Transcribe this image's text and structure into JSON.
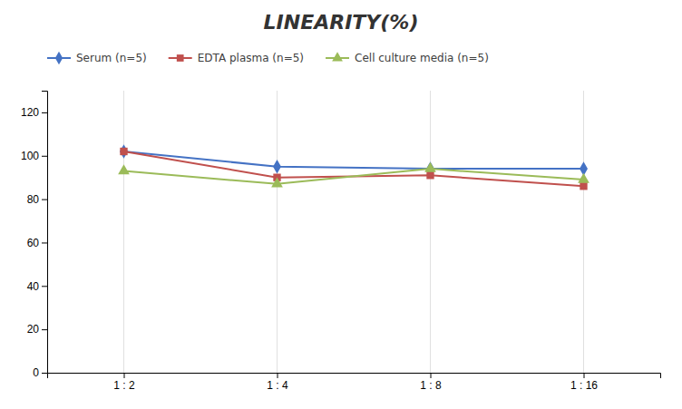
{
  "chart_data": {
    "type": "line",
    "title": "LINEARITY(%)",
    "categories": [
      "1 : 2",
      "1 : 4",
      "1 : 8",
      "1 : 16"
    ],
    "series": [
      {
        "name": "Serum (n=5)",
        "color": "#4472C4",
        "marker": "diamond",
        "values": [
          102,
          95,
          94,
          94
        ]
      },
      {
        "name": "EDTA plasma (n=5)",
        "color": "#C0504D",
        "marker": "square",
        "values": [
          102,
          90,
          91,
          86
        ]
      },
      {
        "name": "Cell culture media (n=5)",
        "color": "#9BBB59",
        "marker": "triangle",
        "values": [
          93,
          87,
          94,
          89
        ]
      }
    ],
    "ylim": [
      0,
      130
    ],
    "yticks": [
      0,
      20,
      40,
      60,
      80,
      100,
      120
    ],
    "grid": true,
    "legend": "top"
  }
}
